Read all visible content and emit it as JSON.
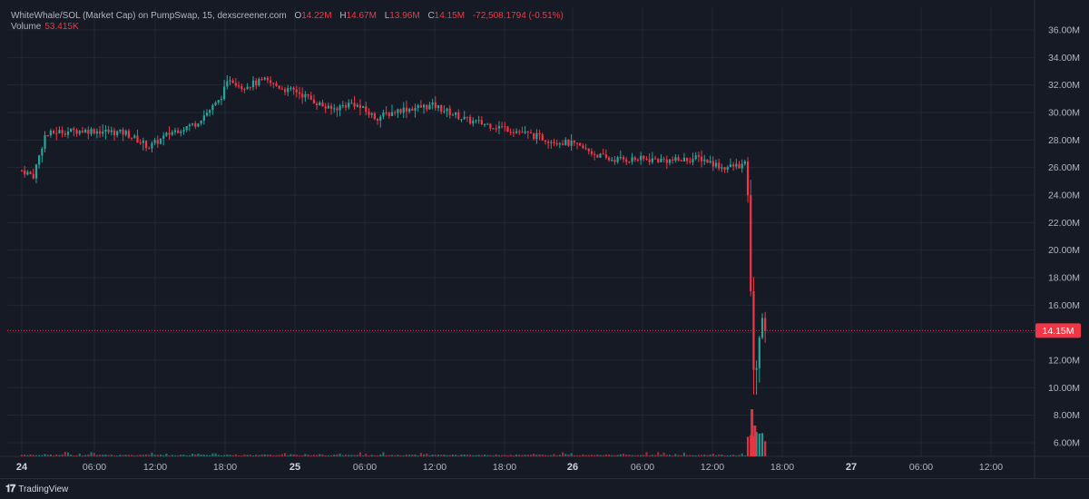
{
  "legend": {
    "symbol": "WhiteWhale/SOL (Market Cap) on PumpSwap, 15, dexscreener.com",
    "o_label": "O",
    "o_value": "14.22M",
    "h_label": "H",
    "h_value": "14.67M",
    "l_label": "L",
    "l_value": "13.96M",
    "c_label": "C",
    "c_value": "14.15M",
    "change": "-72,508.1794 (-0.51%)",
    "volume_label": "Volume",
    "volume_value": "53.415K"
  },
  "price_badge": "14.15M",
  "brand": "TradingView",
  "colors": {
    "up": "#26a69a",
    "down": "#f23645",
    "background": "#161a25",
    "grid": "#232733",
    "text": "#b2b5be"
  },
  "chart_data": {
    "type": "candlestick",
    "title": "WhiteWhale/SOL (Market Cap) on PumpSwap, 15, dexscreener.com",
    "interval": "15",
    "x_tick_labels": [
      "24",
      "06:00",
      "12:00",
      "18:00",
      "25",
      "06:00",
      "12:00",
      "18:00",
      "26",
      "06:00",
      "12:00",
      "18:00",
      "27",
      "06:00",
      "12:00"
    ],
    "y_tick_labels": [
      "36.00M",
      "34.00M",
      "32.00M",
      "30.00M",
      "28.00M",
      "26.00M",
      "24.00M",
      "22.00M",
      "20.00M",
      "18.00M",
      "16.00M",
      "14.00M",
      "12.00M",
      "10.00M",
      "8.00M",
      "6.00M"
    ],
    "ylim": [
      5.0,
      37.0
    ],
    "unit": "M",
    "last_price": 14.15,
    "ohlc_last": {
      "open": 14.22,
      "high": 14.67,
      "low": 13.96,
      "close": 14.15
    },
    "price_path": [
      {
        "t": "24 00:00",
        "v": 25.8
      },
      {
        "t": "24 01:00",
        "v": 25.4
      },
      {
        "t": "24 02:00",
        "v": 28.3
      },
      {
        "t": "24 03:00",
        "v": 28.6
      },
      {
        "t": "24 06:00",
        "v": 28.7
      },
      {
        "t": "24 09:00",
        "v": 28.5
      },
      {
        "t": "24 11:00",
        "v": 27.5
      },
      {
        "t": "24 13:00",
        "v": 28.6
      },
      {
        "t": "24 15:00",
        "v": 29.2
      },
      {
        "t": "24 17:00",
        "v": 30.8
      },
      {
        "t": "24 18:00",
        "v": 32.5
      },
      {
        "t": "24 19:00",
        "v": 31.9
      },
      {
        "t": "24 21:00",
        "v": 32.3
      },
      {
        "t": "24 23:00",
        "v": 31.6
      },
      {
        "t": "25 00:00",
        "v": 31.6
      },
      {
        "t": "25 03:00",
        "v": 30.2
      },
      {
        "t": "25 05:00",
        "v": 30.7
      },
      {
        "t": "25 07:00",
        "v": 29.6
      },
      {
        "t": "25 09:00",
        "v": 30.2
      },
      {
        "t": "25 12:00",
        "v": 30.5
      },
      {
        "t": "25 15:00",
        "v": 29.4
      },
      {
        "t": "25 18:00",
        "v": 28.9
      },
      {
        "t": "25 22:00",
        "v": 28.0
      },
      {
        "t": "26 00:00",
        "v": 27.7
      },
      {
        "t": "26 03:00",
        "v": 26.6
      },
      {
        "t": "26 06:00",
        "v": 26.6
      },
      {
        "t": "26 09:00",
        "v": 26.5
      },
      {
        "t": "26 11:00",
        "v": 26.7
      },
      {
        "t": "26 13:00",
        "v": 26.0
      },
      {
        "t": "26 15:00",
        "v": 26.2
      },
      {
        "t": "26 15:15",
        "v": 22.3
      },
      {
        "t": "26 15:30",
        "v": 13.0
      },
      {
        "t": "26 15:45",
        "v": 10.0
      },
      {
        "t": "26 16:00",
        "v": 12.5
      },
      {
        "t": "26 16:15",
        "v": 14.5
      },
      {
        "t": "26 16:30",
        "v": 15.5
      },
      {
        "t": "26 16:45",
        "v": 14.15
      }
    ]
  }
}
